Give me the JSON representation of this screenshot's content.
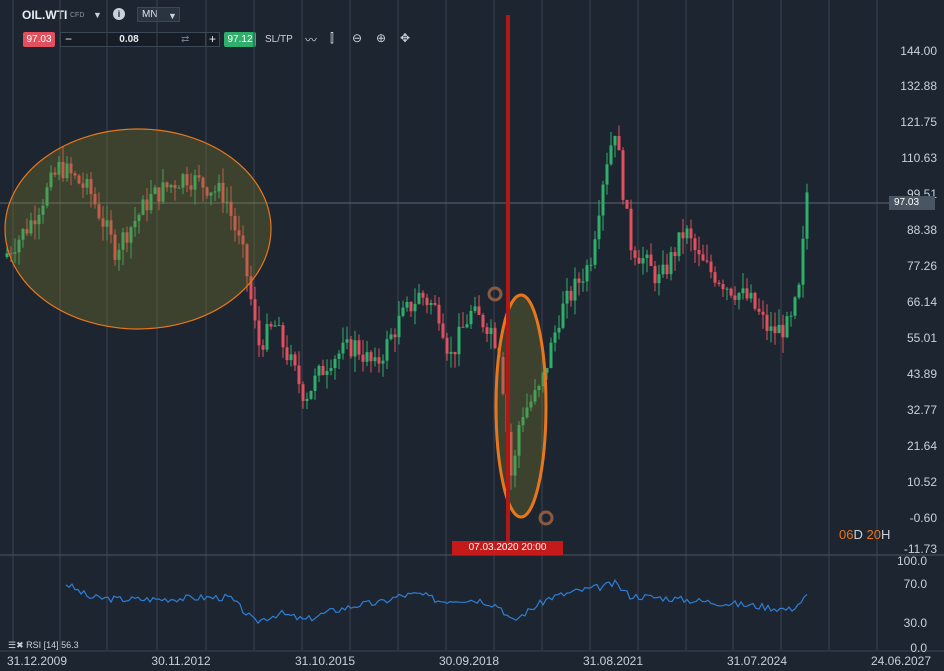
{
  "header": {
    "symbol": "OIL.WTI",
    "symbol_type": "CFD",
    "timeframe": "MN"
  },
  "trade": {
    "bid": "97.03",
    "volume": "0.08",
    "ask": "97.12",
    "sltp_label": "SL/TP"
  },
  "price_axis": {
    "labels": [
      "144.00",
      "132.88",
      "121.75",
      "110.63",
      "99.51",
      "88.38",
      "77.26",
      "66.14",
      "55.01",
      "43.89",
      "32.77",
      "21.64",
      "10.52",
      "-0.60",
      "-11.73"
    ],
    "current": "97.03"
  },
  "rsi_axis": {
    "labels": [
      "100.0",
      "70.0",
      "30.0",
      "0.0"
    ]
  },
  "time_axis": {
    "labels": [
      "31.12.2009",
      "30.11.2012",
      "31.10.2015",
      "30.09.2018",
      "31.08.2021",
      "31.07.2024",
      "24.06.2027"
    ]
  },
  "crosshair": {
    "date": "07.03.2020 20:00"
  },
  "countdown": {
    "days": "06",
    "d": "D",
    "hours": "20",
    "h": "H"
  },
  "rsi": {
    "label": "RSI [14] 56.3"
  },
  "colors": {
    "bull": "#2fae6c",
    "bear": "#e0505e",
    "rsi": "#2d7fd6",
    "highlight": "#e8761c"
  },
  "chart_data": {
    "type": "candlestick",
    "title": "OIL.WTI",
    "timeframe": "MN",
    "last_price": 97.03,
    "ylim": [
      -11.73,
      144.0
    ],
    "rsi_period": 14,
    "rsi_last": 56.3,
    "rsi_ylim": [
      0,
      100
    ]
  }
}
